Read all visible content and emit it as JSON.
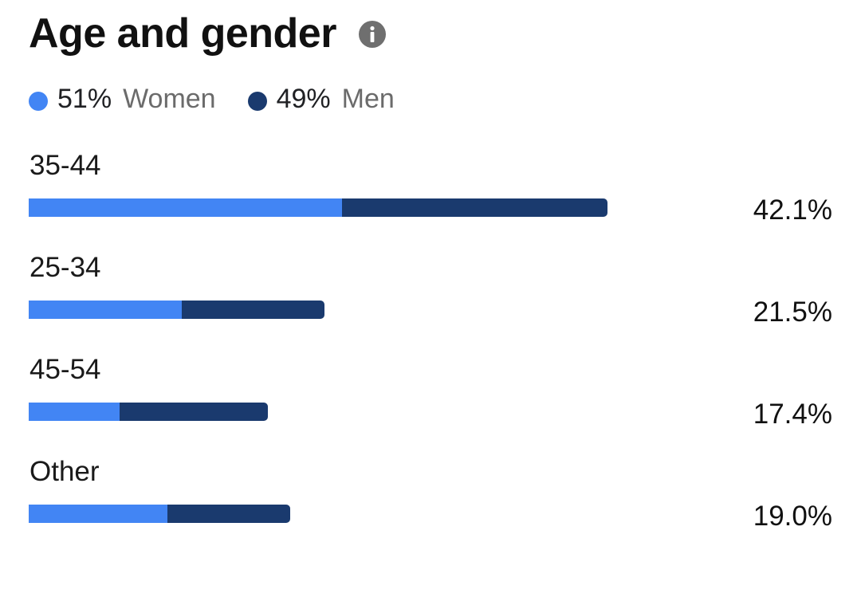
{
  "header": {
    "title": "Age and gender",
    "info_icon": "info-icon"
  },
  "legend": [
    {
      "value": "51%",
      "label": "Women",
      "color": "#4285f4"
    },
    {
      "value": "49%",
      "label": "Men",
      "color": "#1a3a6e"
    }
  ],
  "colors": {
    "women": "#4285f4",
    "men": "#1a3a6e",
    "info_icon": "#6f6f6f"
  },
  "chart_data": {
    "type": "bar",
    "orientation": "horizontal",
    "stacked": true,
    "title": "Age and gender",
    "categories": [
      "35-44",
      "25-34",
      "45-54",
      "Other"
    ],
    "value_labels": [
      "42.1%",
      "21.5%",
      "17.4%",
      "19.0%"
    ],
    "totals": [
      42.1,
      21.5,
      17.4,
      19.0
    ],
    "series": [
      {
        "name": "Women",
        "values": [
          22.8,
          11.1,
          6.6,
          10.1
        ]
      },
      {
        "name": "Men",
        "values": [
          19.3,
          10.4,
          10.8,
          8.9
        ]
      }
    ],
    "xlim": [
      0,
      51
    ],
    "grid": false,
    "legend_position": "top-left"
  }
}
